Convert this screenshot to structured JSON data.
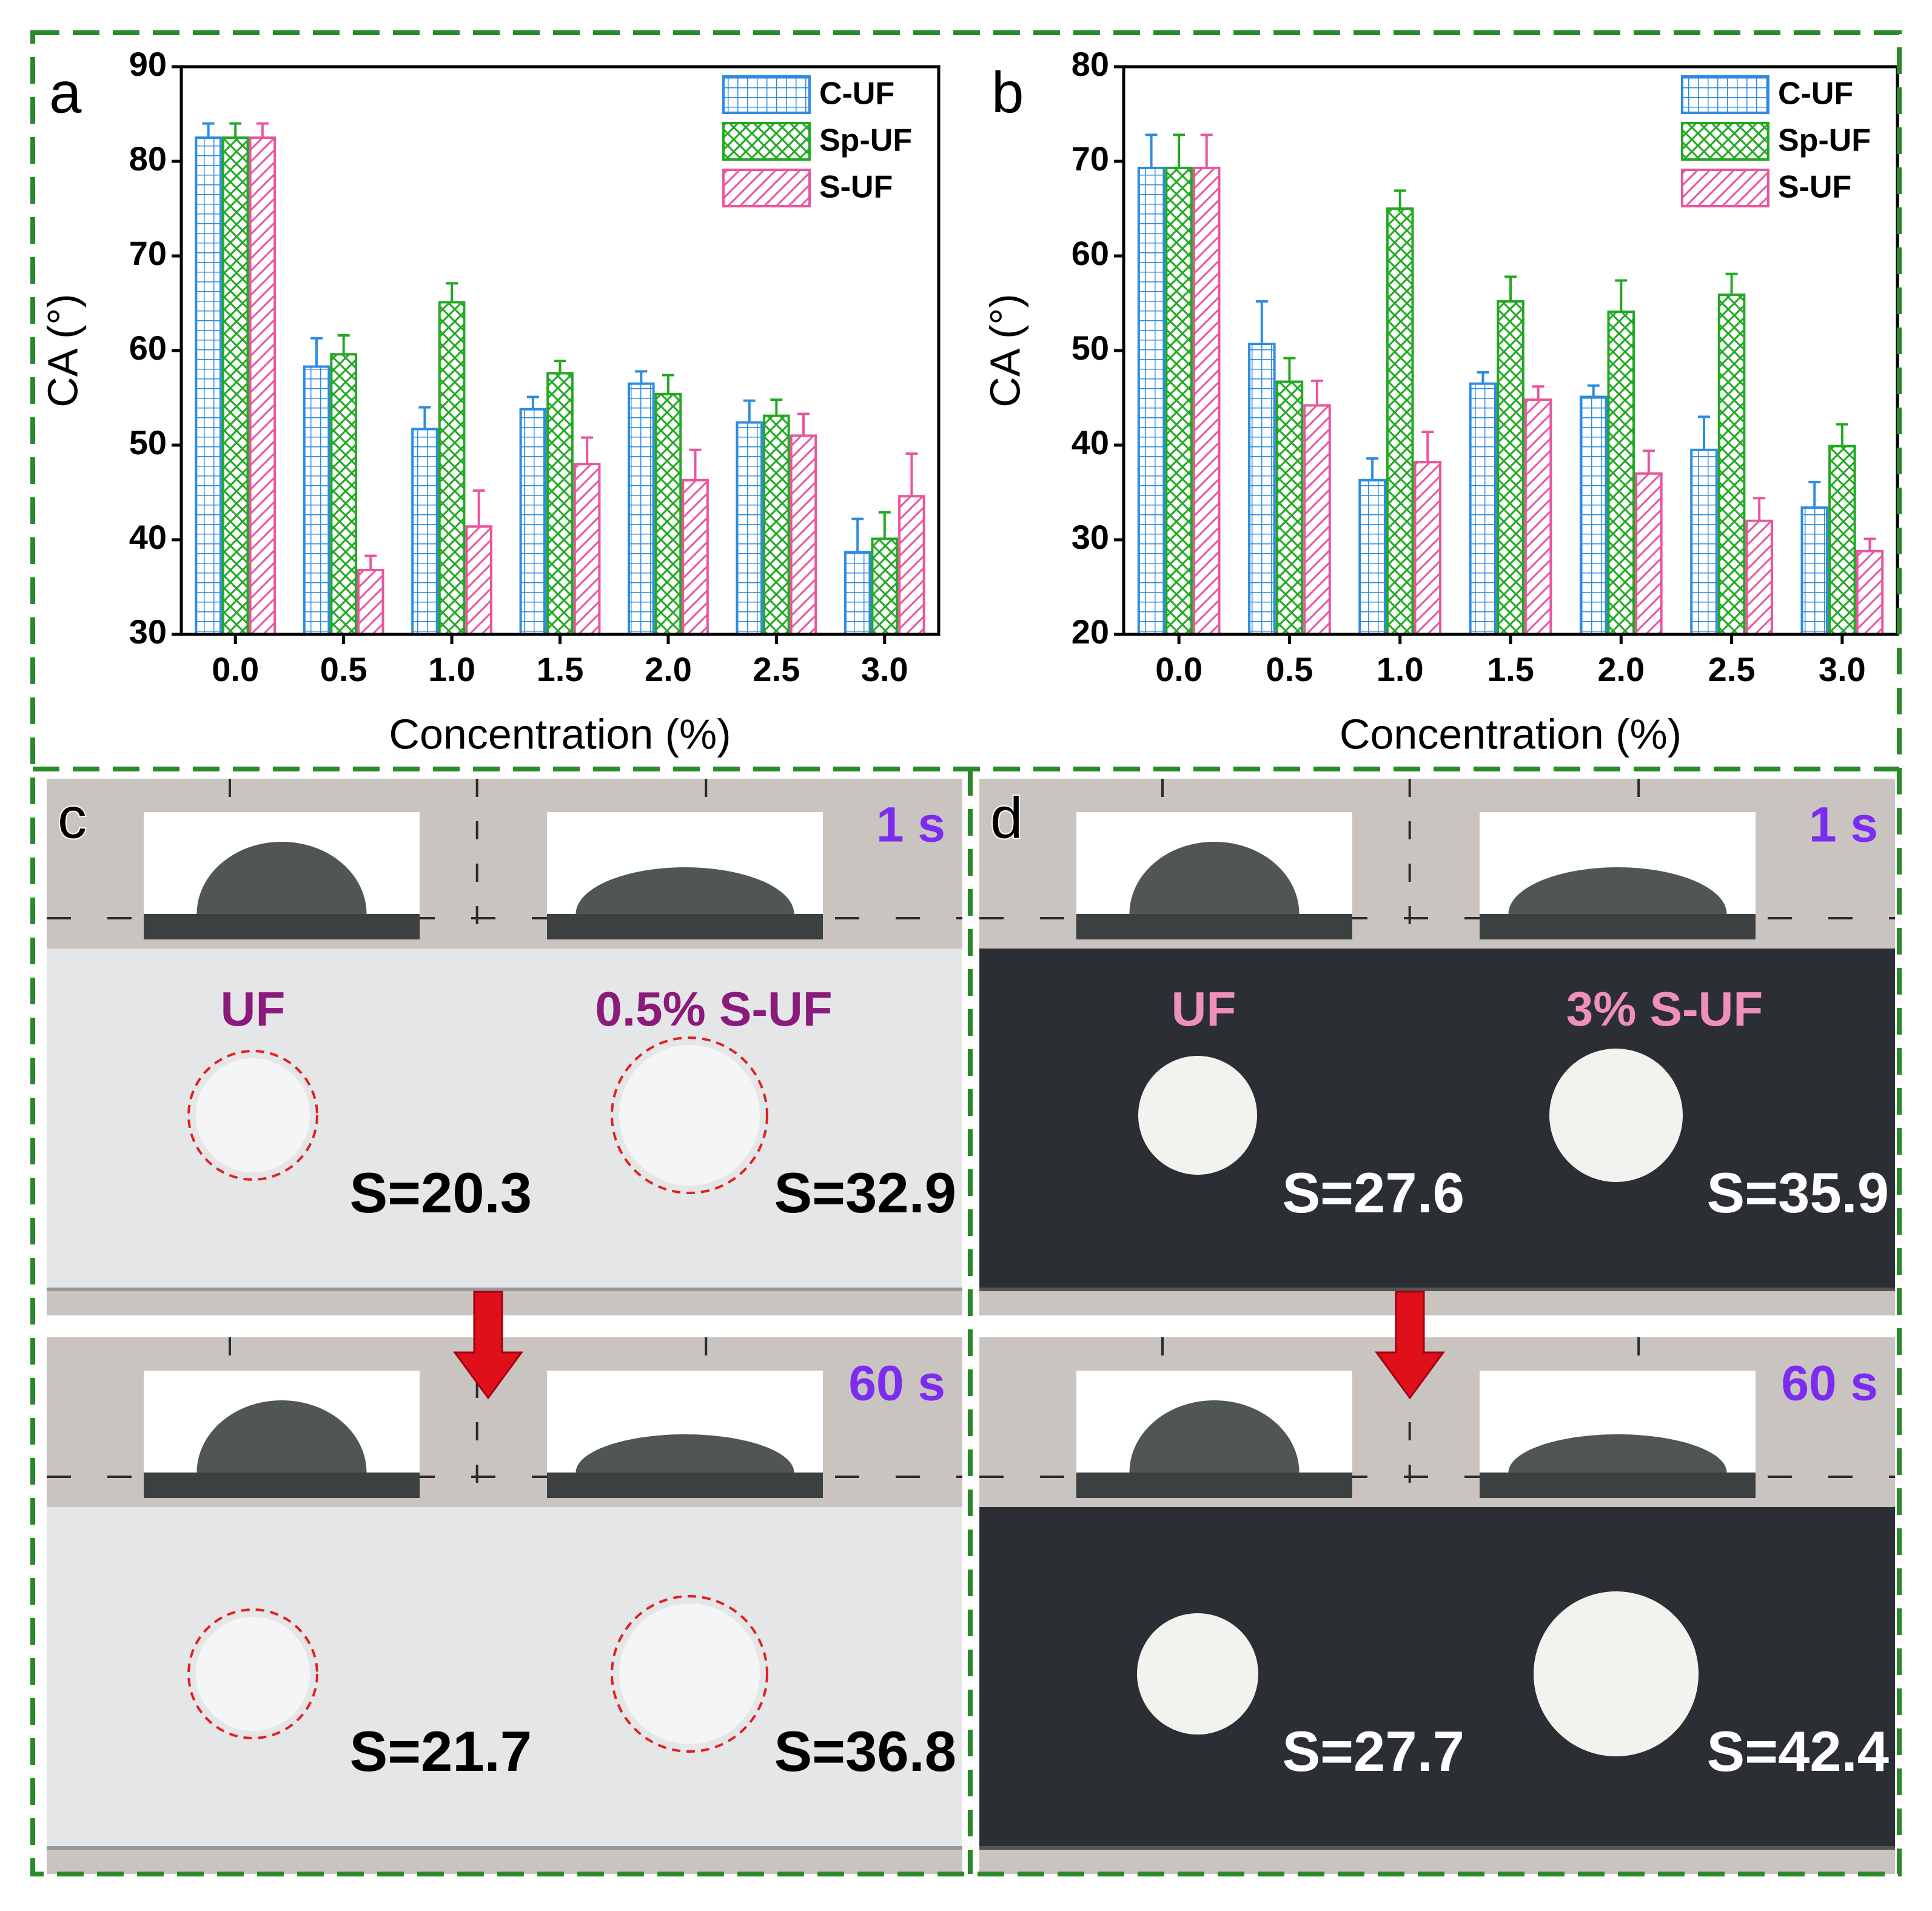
{
  "chart_data": [
    {
      "type": "bar",
      "panel_label": "a",
      "xlabel": "Concentration (%)",
      "ylabel": "CA (°)",
      "categories": [
        "0.0",
        "0.5",
        "1.0",
        "1.5",
        "2.0",
        "2.5",
        "3.0"
      ],
      "ylim": [
        30,
        90
      ],
      "yticks": [
        30,
        40,
        50,
        60,
        70,
        80,
        90
      ],
      "legend": "upper right",
      "series": [
        {
          "name": "C-UF",
          "color": "#2e8be0",
          "pattern": "grid",
          "values": [
            82.5,
            58.3,
            51.7,
            53.8,
            56.5,
            52.4,
            38.7
          ],
          "errors": [
            1.5,
            3.0,
            2.3,
            1.3,
            1.3,
            2.3,
            3.5
          ]
        },
        {
          "name": "Sp-UF",
          "color": "#22a822",
          "pattern": "crosshatch",
          "values": [
            82.5,
            59.6,
            65.1,
            57.6,
            55.4,
            53.1,
            40.1
          ],
          "errors": [
            1.5,
            2.0,
            2.0,
            1.3,
            2.0,
            1.7,
            2.8
          ]
        },
        {
          "name": "S-UF",
          "color": "#e8559e",
          "pattern": "diagonal",
          "values": [
            82.5,
            36.8,
            41.4,
            48.0,
            46.3,
            51.0,
            44.6
          ],
          "errors": [
            1.5,
            1.5,
            3.8,
            2.8,
            3.2,
            2.3,
            4.5
          ]
        }
      ]
    },
    {
      "type": "bar",
      "panel_label": "b",
      "xlabel": "Concentration (%)",
      "ylabel": "CA (°)",
      "categories": [
        "0.0",
        "0.5",
        "1.0",
        "1.5",
        "2.0",
        "2.5",
        "3.0"
      ],
      "ylim": [
        20,
        80
      ],
      "yticks": [
        20,
        30,
        40,
        50,
        60,
        70,
        80
      ],
      "legend": "upper right",
      "series": [
        {
          "name": "C-UF",
          "color": "#2e8be0",
          "pattern": "grid",
          "values": [
            69.3,
            50.7,
            36.3,
            46.5,
            45.1,
            39.5,
            33.4
          ],
          "errors": [
            3.5,
            4.5,
            2.3,
            1.2,
            1.2,
            3.5,
            2.7
          ]
        },
        {
          "name": "Sp-UF",
          "color": "#22a822",
          "pattern": "crosshatch",
          "values": [
            69.3,
            46.7,
            65.0,
            55.2,
            54.1,
            55.9,
            39.9
          ],
          "errors": [
            3.5,
            2.5,
            1.9,
            2.6,
            3.3,
            2.2,
            2.3
          ]
        },
        {
          "name": "S-UF",
          "color": "#e8559e",
          "pattern": "diagonal",
          "values": [
            69.3,
            44.2,
            38.2,
            44.8,
            37.0,
            32.0,
            28.8
          ],
          "errors": [
            3.5,
            2.6,
            3.2,
            1.4,
            2.4,
            2.4,
            1.3
          ]
        }
      ]
    }
  ],
  "panels": [
    {
      "label": "c",
      "samples": [
        "UF",
        "0.5% S-UF"
      ],
      "rows": [
        {
          "time": "1 s",
          "areas": [
            "S=20.3",
            "S=32.9"
          ]
        },
        {
          "time": "60 s",
          "areas": [
            "S=21.7",
            "S=36.8"
          ]
        }
      ]
    },
    {
      "label": "d",
      "samples": [
        "UF",
        "3% S-UF"
      ],
      "rows": [
        {
          "time": "1 s",
          "areas": [
            "S=27.6",
            "S=35.9"
          ]
        },
        {
          "time": "60 s",
          "areas": [
            "S=27.7",
            "S=42.4"
          ]
        }
      ]
    }
  ]
}
